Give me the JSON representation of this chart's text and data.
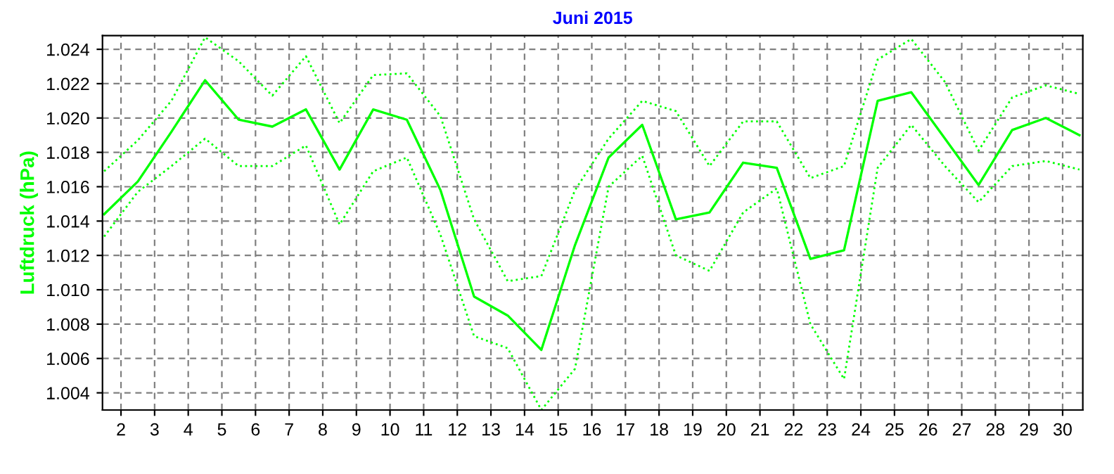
{
  "chart_data": {
    "type": "line",
    "title": "Juni 2015",
    "ylabel": "Luftdruck (hPa)",
    "x": [
      1.5,
      2.5,
      3.5,
      4.5,
      5.5,
      6.5,
      7.5,
      8.5,
      9.5,
      10.5,
      11.5,
      12.5,
      13.5,
      14.5,
      15.5,
      16.5,
      17.5,
      18.5,
      19.5,
      20.5,
      21.5,
      22.5,
      23.5,
      24.5,
      25.5,
      26.5,
      27.5,
      28.5,
      29.5,
      30.5
    ],
    "series": [
      {
        "color": "#00ff00",
        "line_style": "dotted",
        "values": [
          1.0169,
          1.0187,
          1.021,
          1.0247,
          1.0233,
          1.0213,
          1.0236,
          1.0197,
          1.0225,
          1.0226,
          1.0201,
          1.0141,
          1.0105,
          1.0108,
          1.0158,
          1.0188,
          1.021,
          1.0204,
          1.0172,
          1.0198,
          1.0198,
          1.0165,
          1.0172,
          1.0234,
          1.0246,
          1.0221,
          1.0181,
          1.0212,
          1.0219,
          1.0214
        ]
      },
      {
        "color": "#00ff00",
        "line_style": "solid",
        "values": [
          1.0144,
          1.0163,
          1.0192,
          1.0222,
          1.0199,
          1.0195,
          1.0205,
          1.017,
          1.0205,
          1.0199,
          1.0158,
          1.0096,
          1.0085,
          1.0065,
          1.0126,
          1.0177,
          1.0196,
          1.0141,
          1.0145,
          1.0174,
          1.0171,
          1.0118,
          1.0123,
          1.021,
          1.0215,
          1.0188,
          1.0161,
          1.0193,
          1.02,
          1.019
        ]
      },
      {
        "color": "#00ff00",
        "line_style": "dotted",
        "values": [
          1.0131,
          1.0157,
          1.0172,
          1.0188,
          1.0172,
          1.0172,
          1.0184,
          1.0138,
          1.0169,
          1.0177,
          1.0132,
          1.0073,
          1.0066,
          1.003,
          1.0054,
          1.016,
          1.0178,
          1.012,
          1.0111,
          1.0145,
          1.0159,
          1.008,
          1.0048,
          1.0171,
          1.0196,
          1.0172,
          1.0151,
          1.0172,
          1.0175,
          1.017
        ]
      }
    ],
    "xlim": [
      1.45,
      30.6
    ],
    "xticks": [
      2,
      3,
      4,
      5,
      6,
      7,
      8,
      9,
      10,
      11,
      12,
      13,
      14,
      15,
      16,
      17,
      18,
      19,
      20,
      21,
      22,
      23,
      24,
      25,
      26,
      27,
      28,
      29,
      30
    ],
    "ylim": [
      1.003,
      1.0248
    ],
    "yticks": [
      {
        "value": 1.004,
        "label": "1.004"
      },
      {
        "value": 1.006,
        "label": "1.006"
      },
      {
        "value": 1.008,
        "label": "1.008"
      },
      {
        "value": 1.01,
        "label": "1.010"
      },
      {
        "value": 1.012,
        "label": "1.012"
      },
      {
        "value": 1.014,
        "label": "1.014"
      },
      {
        "value": 1.016,
        "label": "1.016"
      },
      {
        "value": 1.018,
        "label": "1.018"
      },
      {
        "value": 1.02,
        "label": "1.020"
      },
      {
        "value": 1.022,
        "label": "1.022"
      },
      {
        "value": 1.024,
        "label": "1.024"
      }
    ],
    "grid": true,
    "marker": "none"
  }
}
